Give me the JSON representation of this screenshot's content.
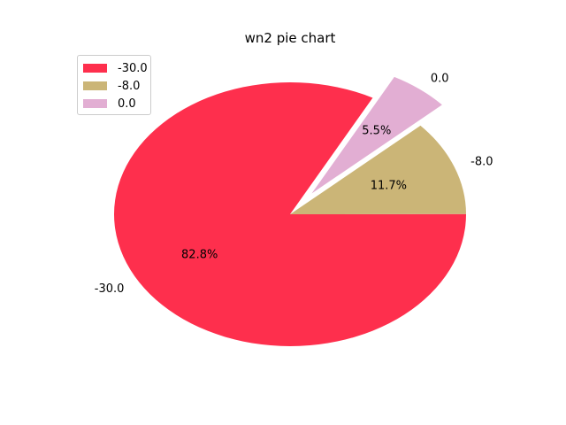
{
  "chart_data": {
    "type": "pie",
    "title": "wn2 pie chart",
    "slices": [
      {
        "label": "-30.0",
        "percent": 82.8,
        "pct_label": "82.8%",
        "color": "#fe2f4d",
        "exploded": false
      },
      {
        "label": "-8.0",
        "percent": 11.7,
        "pct_label": "11.7%",
        "color": "#cbb577",
        "exploded": false
      },
      {
        "label": "0.0",
        "percent": 5.5,
        "pct_label": "5.5%",
        "color": "#e2aed3",
        "exploded": true
      }
    ],
    "legend": {
      "position": "top-left",
      "entries": [
        "-30.0",
        "-8.0",
        "0.0"
      ]
    }
  }
}
